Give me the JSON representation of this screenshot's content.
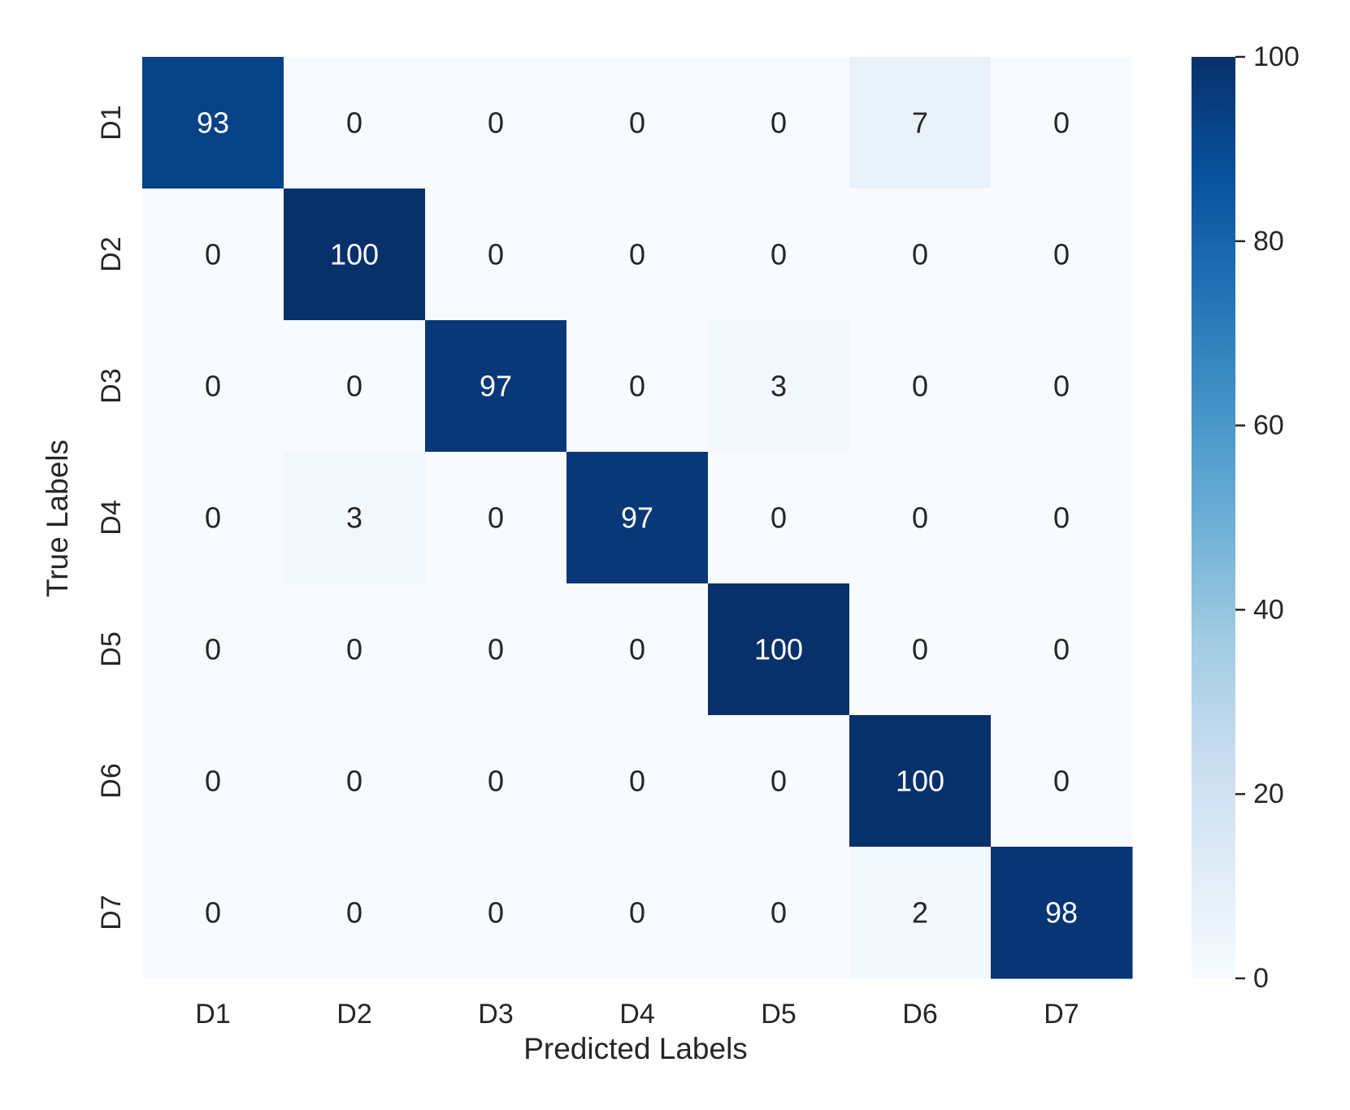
{
  "chart_data": {
    "type": "heatmap",
    "title": "",
    "xlabel": "Predicted Labels",
    "ylabel": "True Labels",
    "x_categories": [
      "D1",
      "D2",
      "D3",
      "D4",
      "D5",
      "D6",
      "D7"
    ],
    "y_categories": [
      "D1",
      "D2",
      "D3",
      "D4",
      "D5",
      "D6",
      "D7"
    ],
    "values": [
      [
        93,
        0,
        0,
        0,
        0,
        7,
        0
      ],
      [
        0,
        100,
        0,
        0,
        0,
        0,
        0
      ],
      [
        0,
        0,
        97,
        0,
        3,
        0,
        0
      ],
      [
        0,
        3,
        0,
        97,
        0,
        0,
        0
      ],
      [
        0,
        0,
        0,
        0,
        100,
        0,
        0
      ],
      [
        0,
        0,
        0,
        0,
        0,
        100,
        0
      ],
      [
        0,
        0,
        0,
        0,
        0,
        2,
        98
      ]
    ],
    "colorbar": {
      "min": 0,
      "max": 100,
      "ticks": [
        0,
        20,
        40,
        60,
        80,
        100
      ],
      "colormap": "Blues"
    },
    "colors": {
      "low": "#f7fbff",
      "high": "#08306b",
      "text_dark": "#262626",
      "text_light": "#ffffff"
    },
    "grid": false
  }
}
